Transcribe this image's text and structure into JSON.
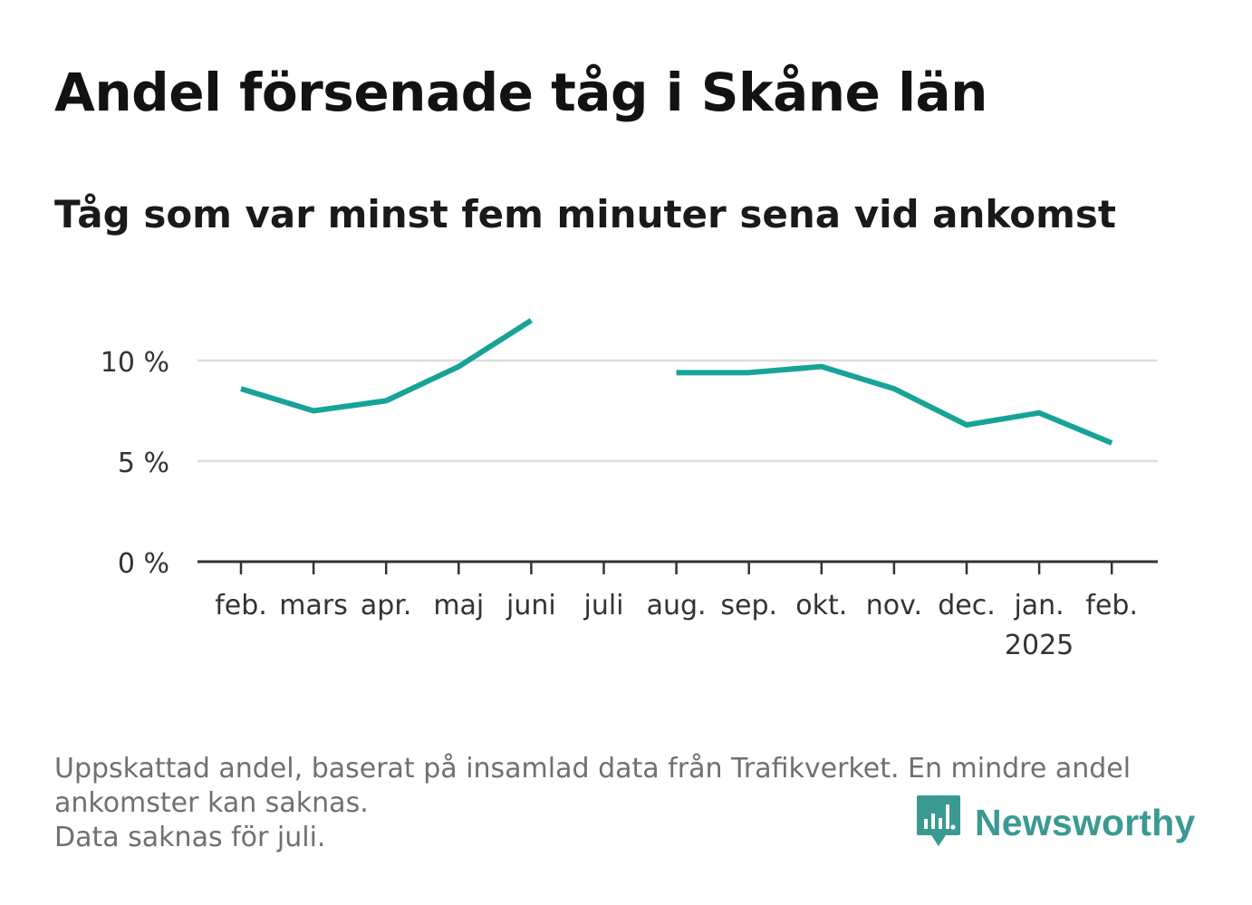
{
  "title": "Andel försenade tåg i Skåne län",
  "subtitle": "Tåg som var minst fem minuter sena vid ankomst",
  "footnote": {
    "line1": "Uppskattad andel, baserat på insamlad data från Trafikverket. En mindre andel",
    "line2": "ankomster kan saknas.",
    "line3": "Data saknas för juli."
  },
  "brand": {
    "name": "Newsworthy",
    "icon": "newsworthy-logo-icon",
    "color": "#3a9a92"
  },
  "chart_data": {
    "type": "line",
    "categories": [
      "feb.",
      "mars",
      "apr.",
      "maj",
      "juni",
      "juli",
      "aug.",
      "sep.",
      "okt.",
      "nov.",
      "dec.",
      "jan.",
      "feb."
    ],
    "year_labels": [
      "",
      "",
      "",
      "",
      "",
      "",
      "",
      "",
      "",
      "",
      "",
      "2025",
      ""
    ],
    "series": [
      {
        "values": [
          8.6,
          7.5,
          8.0,
          9.7,
          12.0,
          null,
          9.4,
          9.4,
          9.7,
          8.6,
          6.8,
          7.4,
          5.9
        ],
        "color": "#17a398"
      }
    ],
    "yticks": [
      0,
      5,
      10
    ],
    "ytick_labels": [
      "0 %",
      "5 %",
      "10 %"
    ],
    "ylim": [
      0,
      12
    ],
    "xlabel": "",
    "ylabel": "",
    "grid": true,
    "gridline_color": "#dddddd",
    "axis_color": "#333333"
  }
}
